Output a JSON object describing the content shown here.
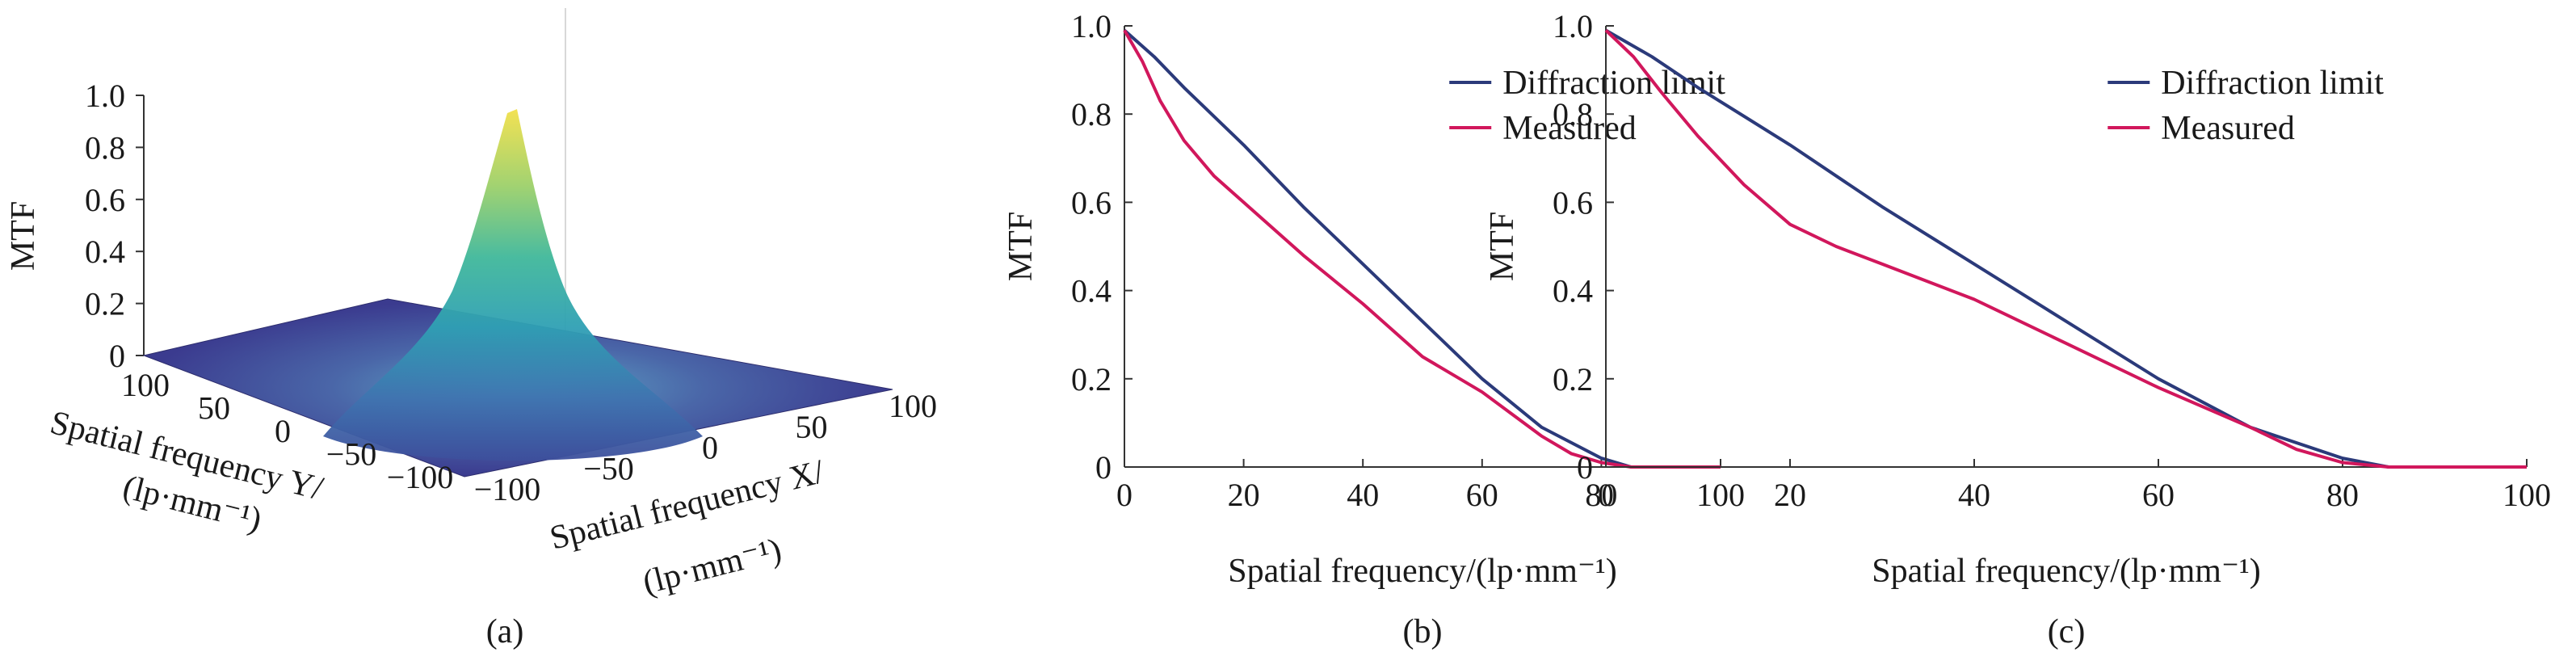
{
  "colors": {
    "diffraction": "#2b3a7a",
    "measured": "#d1175c",
    "floor": "#3b3b8f"
  },
  "chart_data": [
    {
      "type": "surface3d",
      "caption": "(a)",
      "zlabel": "MTF",
      "xlabel_line1": "Spatial frequency X/",
      "xlabel_line2": "(lp·mm⁻¹)",
      "ylabel_line1": "Spatial frequency Y/",
      "ylabel_line2": "(lp·mm⁻¹)",
      "zticks": [
        "0",
        "0.2",
        "0.4",
        "0.6",
        "0.8",
        "1.0"
      ],
      "xticks": [
        "−100",
        "−50",
        "0",
        "50",
        "100"
      ],
      "yticks": [
        "100",
        "50",
        "0",
        "−50",
        "−100"
      ],
      "xlim": [
        -100,
        100
      ],
      "ylim": [
        -100,
        100
      ],
      "zlim": [
        0,
        1.0
      ],
      "peak": 0.98,
      "colormap": "viridis-like (purple to yellow)"
    },
    {
      "type": "line",
      "caption": "(b)",
      "xlabel": "Spatial frequency/(lp·mm⁻¹)",
      "ylabel": "MTF",
      "xlim": [
        0,
        100
      ],
      "ylim": [
        0,
        1.0
      ],
      "xticks": [
        "0",
        "20",
        "40",
        "60",
        "80",
        "100"
      ],
      "yticks": [
        "0",
        "0.2",
        "0.4",
        "0.6",
        "0.8",
        "1.0"
      ],
      "legend": "top-right",
      "series": [
        {
          "name": "Diffraction limit",
          "x": [
            0,
            5,
            10,
            20,
            30,
            40,
            50,
            60,
            70,
            80,
            85,
            90,
            100
          ],
          "y": [
            0.99,
            0.93,
            0.86,
            0.73,
            0.59,
            0.46,
            0.33,
            0.2,
            0.09,
            0.02,
            0.0,
            0.0,
            0.0
          ]
        },
        {
          "name": "Measured",
          "x": [
            0,
            3,
            6,
            10,
            15,
            20,
            30,
            40,
            50,
            55,
            60,
            65,
            70,
            75,
            80,
            85,
            90,
            100
          ],
          "y": [
            0.99,
            0.92,
            0.83,
            0.74,
            0.66,
            0.6,
            0.48,
            0.37,
            0.25,
            0.21,
            0.17,
            0.12,
            0.07,
            0.03,
            0.01,
            0.0,
            0.0,
            0.0
          ]
        }
      ]
    },
    {
      "type": "line",
      "caption": "(c)",
      "xlabel": "Spatial frequency/(lp·mm⁻¹)",
      "ylabel": "MTF",
      "xlim": [
        0,
        100
      ],
      "ylim": [
        0,
        1.0
      ],
      "xticks": [
        "0",
        "20",
        "40",
        "60",
        "80",
        "100"
      ],
      "yticks": [
        "0",
        "0.2",
        "0.4",
        "0.6",
        "0.8",
        "1.0"
      ],
      "legend": "top-right",
      "series": [
        {
          "name": "Diffraction limit",
          "x": [
            0,
            5,
            10,
            20,
            30,
            40,
            50,
            60,
            70,
            80,
            85,
            90,
            100
          ],
          "y": [
            0.99,
            0.93,
            0.86,
            0.73,
            0.59,
            0.46,
            0.33,
            0.2,
            0.09,
            0.02,
            0.0,
            0.0,
            0.0
          ]
        },
        {
          "name": "Measured",
          "x": [
            0,
            3,
            6,
            10,
            15,
            20,
            25,
            30,
            40,
            50,
            60,
            70,
            75,
            80,
            85,
            90,
            100
          ],
          "y": [
            0.99,
            0.93,
            0.85,
            0.75,
            0.64,
            0.55,
            0.5,
            0.46,
            0.38,
            0.28,
            0.18,
            0.09,
            0.04,
            0.01,
            0.0,
            0.0,
            0.0
          ]
        }
      ]
    }
  ]
}
